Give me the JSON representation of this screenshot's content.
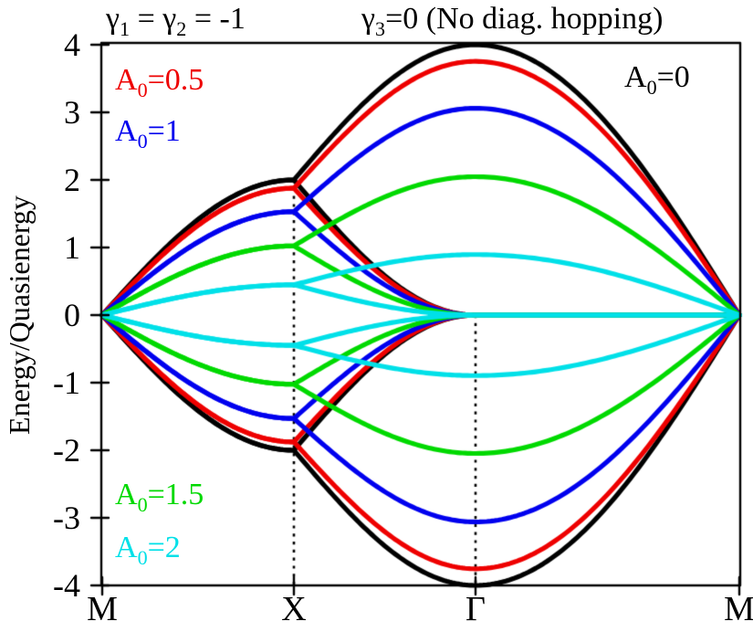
{
  "figure": {
    "title_left": {
      "g1": "γ",
      "s1": "1",
      "m1": " = ",
      "g2": "γ",
      "s2": "2",
      "m2": " = -1"
    },
    "title_right": {
      "g": "γ",
      "s": "3",
      "rest": "=0 (No diag. hopping)"
    },
    "ylabel": "Energy/Quasienergy"
  },
  "axes": {
    "y_tick_labels": [
      "4",
      "3",
      "2",
      "1",
      "0",
      "-1",
      "-2",
      "-3",
      "-4"
    ],
    "x_tick_labels": [
      "M",
      "X",
      "Γ",
      "M"
    ]
  },
  "legend": {
    "items": [
      {
        "sym": "A",
        "sub": "0",
        "val": "=0.5",
        "color": "#ee0000"
      },
      {
        "sym": "A",
        "sub": "0",
        "val": "=1",
        "color": "#0000ee"
      },
      {
        "sym": "A",
        "sub": "0",
        "val": "=0",
        "color": "#000000"
      },
      {
        "sym": "A",
        "sub": "0",
        "val": "=1.5",
        "color": "#00d900"
      },
      {
        "sym": "A",
        "sub": "0",
        "val": "=2",
        "color": "#00e0e8"
      }
    ]
  },
  "chart_data": {
    "type": "line",
    "title": "γ1 = γ2 = -1    γ3=0 (No diag. hopping)",
    "ylabel": "Energy/Quasienergy",
    "ylim": [
      -4,
      4
    ],
    "yticks": [
      4,
      3,
      2,
      1,
      0,
      -1,
      -2,
      -3,
      -4
    ],
    "kpath_labels": [
      "M",
      "X",
      "Γ",
      "M"
    ],
    "grid": false,
    "legend_position": "corners-inside",
    "model": "Floquet square-lattice bands E(k) = ±2·J0(A0)·|cos(kx/2) ± cos(ky/2)|; all curves are the A0=0 bands scaled by the Bessel factor J0(A0). Bands are doubly degenerate along M-X; at X they split into a branch rising to 2V at Γ and a branch falling to 0 at Γ, then E=0 is flat along Γ-M for the inner band.",
    "band_shapes": {
      "M-X_both": "E = V·sin(π·s/2)   (two degenerate bands, V = 2·J0)",
      "X-Γ_outer": "E = V·(1 + sin(π·s/2))",
      "X-Γ_inner": "E = V·(1 − sin(π·s/2))",
      "Γ-M_outer": "E = 2V·cos(π·s/2)",
      "Γ-M_inner": "E = 0",
      "lower_half": "mirror image: E → −E"
    },
    "series": [
      {
        "A0": 0,
        "color": "#000000",
        "j0_scale": 1.0,
        "E_at_X": 2.0,
        "E_max_at_Gamma": 4.0
      },
      {
        "A0": 0.5,
        "color": "#ee0000",
        "j0_scale": 0.938469,
        "E_at_X": 1.88,
        "E_max_at_Gamma": 3.75
      },
      {
        "A0": 1,
        "color": "#0000ee",
        "j0_scale": 0.765198,
        "E_at_X": 1.53,
        "E_max_at_Gamma": 3.06
      },
      {
        "A0": 1.5,
        "color": "#00d900",
        "j0_scale": 0.511828,
        "E_at_X": 1.02,
        "E_max_at_Gamma": 2.05
      },
      {
        "A0": 2,
        "color": "#00e0e8",
        "j0_scale": 0.223891,
        "E_at_X": 0.45,
        "E_max_at_Gamma": 0.9
      }
    ],
    "dotted_guides": [
      {
        "at": "X",
        "from_E": 2.0,
        "to_E": -4.0
      },
      {
        "at": "Γ",
        "from_E": 0.0,
        "to_E": -4.0
      }
    ]
  }
}
